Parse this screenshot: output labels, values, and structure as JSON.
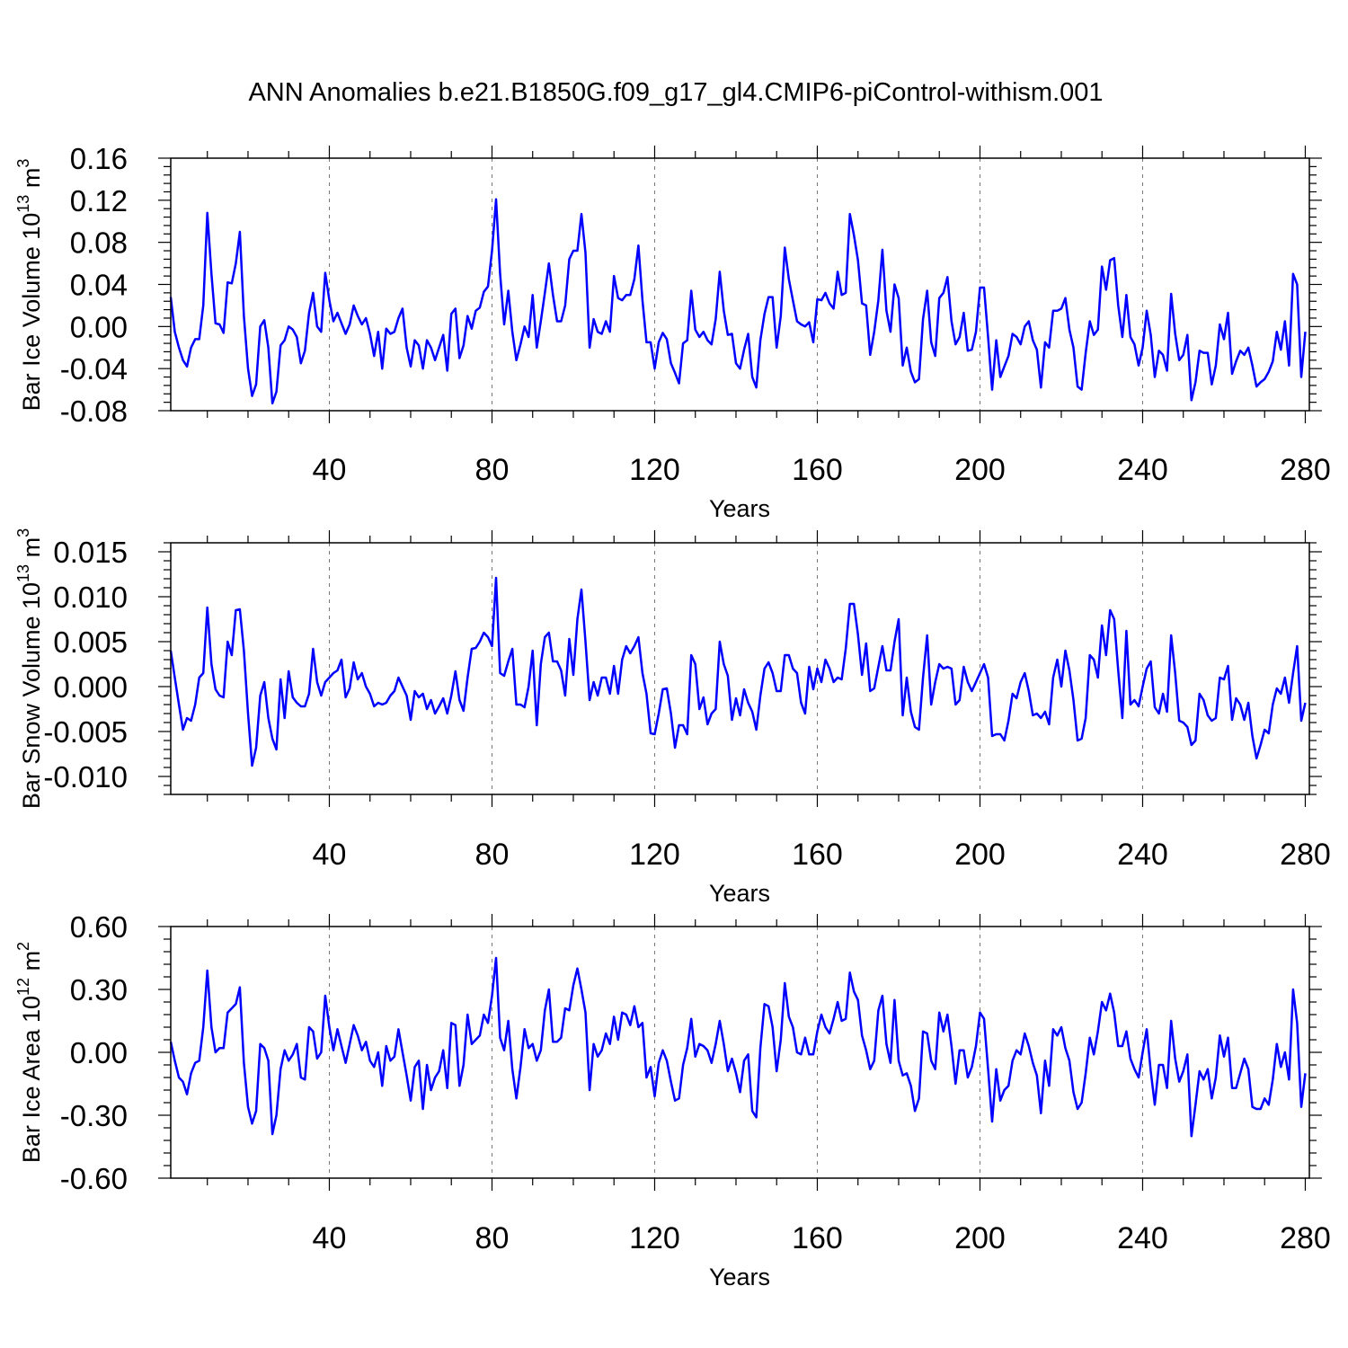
{
  "title": "ANN Anomalies b.e21.B1850G.f09_g17_gl4.CMIP6-piControl-withism.001",
  "chart_data": [
    {
      "type": "line",
      "title": "",
      "ylabel": "Bar Ice Volume 10",
      "ylabel_exp": "13",
      "ylabel_unit": " m",
      "ylabel_unit_exp": "3",
      "xlabel": "Years",
      "xlim": [
        1,
        281
      ],
      "ylim": [
        -0.08,
        0.16
      ],
      "yticks": [
        "-0.08",
        "-0.04",
        "0.00",
        "0.04",
        "0.08",
        "0.12",
        "0.16"
      ],
      "xticks": [
        "40",
        "80",
        "120",
        "160",
        "200",
        "240",
        "280"
      ],
      "grid": "vertical dashed at 40-year ticks",
      "line_color": "#0000ff",
      "x_start": 1,
      "values": [
        0.028,
        -0.005,
        -0.02,
        -0.032,
        -0.038,
        -0.02,
        -0.012,
        -0.012,
        0.02,
        0.108,
        0.05,
        0.003,
        0.002,
        -0.006,
        0.042,
        0.041,
        0.06,
        0.09,
        0.01,
        -0.04,
        -0.066,
        -0.055,
        0.0,
        0.006,
        -0.02,
        -0.073,
        -0.062,
        -0.018,
        -0.013,
        0.0,
        -0.003,
        -0.01,
        -0.035,
        -0.023,
        0.013,
        0.032,
        0.0,
        -0.005,
        0.051,
        0.025,
        0.005,
        0.013,
        0.003,
        -0.007,
        0.002,
        0.02,
        0.01,
        0.002,
        0.008,
        -0.007,
        -0.028,
        -0.005,
        -0.04,
        -0.002,
        -0.007,
        -0.005,
        0.008,
        0.017,
        -0.02,
        -0.038,
        -0.013,
        -0.018,
        -0.04,
        -0.013,
        -0.02,
        -0.032,
        -0.02,
        -0.008,
        -0.042,
        0.012,
        0.017,
        -0.03,
        -0.018,
        0.01,
        -0.002,
        0.015,
        0.018,
        0.033,
        0.038,
        0.072,
        0.121,
        0.05,
        0.002,
        0.034,
        -0.005,
        -0.032,
        -0.017,
        0.0,
        -0.01,
        0.03,
        -0.02,
        0.005,
        0.032,
        0.06,
        0.03,
        0.005,
        0.005,
        0.02,
        0.064,
        0.072,
        0.072,
        0.107,
        0.07,
        -0.02,
        0.007,
        -0.005,
        -0.007,
        0.005,
        -0.005,
        0.048,
        0.027,
        0.025,
        0.03,
        0.03,
        0.045,
        0.077,
        0.025,
        -0.015,
        -0.015,
        -0.04,
        -0.015,
        -0.006,
        -0.012,
        -0.035,
        -0.044,
        -0.054,
        -0.016,
        -0.013,
        0.034,
        -0.003,
        -0.01,
        -0.005,
        -0.013,
        -0.017,
        0.007,
        0.052,
        0.015,
        -0.008,
        -0.007,
        -0.035,
        -0.04,
        -0.022,
        -0.007,
        -0.048,
        -0.058,
        -0.013,
        0.012,
        0.028,
        0.028,
        -0.02,
        0.01,
        0.075,
        0.045,
        0.025,
        0.005,
        0.002,
        0.0,
        0.004,
        -0.015,
        0.026,
        0.025,
        0.032,
        0.022,
        0.017,
        0.052,
        0.03,
        0.032,
        0.107,
        0.087,
        0.063,
        0.022,
        0.02,
        -0.027,
        -0.005,
        0.025,
        0.073,
        0.015,
        -0.005,
        0.04,
        0.027,
        -0.037,
        -0.02,
        -0.043,
        -0.053,
        -0.05,
        0.007,
        0.034,
        -0.015,
        -0.028,
        0.027,
        0.032,
        0.047,
        0.005,
        -0.017,
        -0.01,
        0.013,
        -0.023,
        -0.022,
        -0.005,
        0.037,
        0.037,
        -0.01,
        -0.06,
        -0.013,
        -0.048,
        -0.038,
        -0.028,
        -0.007,
        -0.01,
        -0.017,
        0.0,
        0.005,
        -0.013,
        -0.022,
        -0.058,
        -0.015,
        -0.02,
        0.015,
        0.015,
        0.017,
        0.027,
        -0.003,
        -0.02,
        -0.057,
        -0.06,
        -0.025,
        0.005,
        -0.008,
        -0.003,
        0.057,
        0.035,
        0.063,
        0.065,
        0.02,
        -0.01,
        0.03,
        -0.01,
        -0.017,
        -0.037,
        -0.02,
        0.015,
        -0.008,
        -0.048,
        -0.023,
        -0.027,
        -0.042,
        0.031,
        -0.007,
        -0.032,
        -0.027,
        -0.008,
        -0.07,
        -0.053,
        -0.023,
        -0.025,
        -0.025,
        -0.055,
        -0.037,
        0.002,
        -0.012,
        0.013,
        -0.045,
        -0.033,
        -0.023,
        -0.027,
        -0.02,
        -0.037,
        -0.057,
        -0.053,
        -0.05,
        -0.043,
        -0.033,
        -0.005,
        -0.022,
        0.005,
        -0.037,
        0.05,
        0.04,
        -0.048,
        -0.005
      ]
    },
    {
      "type": "line",
      "title": "",
      "ylabel": "Bar Snow Volume 10",
      "ylabel_exp": "13",
      "ylabel_unit": " m",
      "ylabel_unit_exp": "3",
      "xlabel": "Years",
      "xlim": [
        1,
        281
      ],
      "ylim": [
        -0.012,
        0.016
      ],
      "yticks": [
        "-0.010",
        "-0.005",
        "0.000",
        "0.005",
        "0.010",
        "0.015"
      ],
      "ytick_values": [
        -0.01,
        -0.005,
        0.0,
        0.005,
        0.01,
        0.015
      ],
      "xticks": [
        "40",
        "80",
        "120",
        "160",
        "200",
        "240",
        "280"
      ],
      "grid": "vertical dashed at 40-year ticks",
      "line_color": "#0000ff",
      "x_start": 1,
      "values": [
        0.004,
        0.001,
        -0.002,
        -0.0048,
        -0.0035,
        -0.0038,
        -0.002,
        0.001,
        0.0015,
        0.0088,
        0.0025,
        -0.0003,
        -0.001,
        -0.0012,
        0.005,
        0.0035,
        0.0085,
        0.0086,
        0.004,
        -0.003,
        -0.0088,
        -0.0068,
        -0.001,
        0.0005,
        -0.0035,
        -0.0058,
        -0.007,
        0.0008,
        -0.0035,
        0.0017,
        -0.0012,
        -0.0018,
        -0.0022,
        -0.0022,
        -0.0008,
        0.0042,
        0.0005,
        -0.001,
        0.0005,
        0.001,
        0.0015,
        0.0018,
        0.003,
        -0.0012,
        -0.0002,
        0.0027,
        0.0008,
        0.0015,
        0.0,
        -0.0008,
        -0.0022,
        -0.0018,
        -0.002,
        -0.0018,
        -0.001,
        -0.0005,
        0.001,
        0.0,
        -0.001,
        -0.0037,
        -0.0005,
        -0.0012,
        -0.0008,
        -0.0025,
        -0.0015,
        -0.003,
        -0.0022,
        -0.0013,
        -0.003,
        -0.001,
        0.0017,
        -0.0015,
        -0.0027,
        0.001,
        0.0042,
        0.0043,
        0.005,
        0.006,
        0.0055,
        0.0045,
        0.0121,
        0.0015,
        0.0012,
        0.0028,
        0.0042,
        -0.002,
        -0.002,
        -0.0023,
        0.0,
        0.004,
        -0.0043,
        0.0025,
        0.0055,
        0.006,
        0.0028,
        0.0028,
        0.0018,
        -0.001,
        0.0053,
        0.0013,
        0.0075,
        0.0108,
        0.005,
        -0.0015,
        0.0005,
        -0.001,
        0.001,
        0.001,
        -0.0008,
        0.0023,
        -0.0008,
        0.003,
        0.0045,
        0.0037,
        0.0045,
        0.0055,
        0.0015,
        -0.0008,
        -0.0052,
        -0.0053,
        -0.003,
        -0.0003,
        -0.0002,
        -0.003,
        -0.0068,
        -0.0043,
        -0.0043,
        -0.0053,
        0.0035,
        0.0025,
        -0.0025,
        -0.0012,
        -0.0042,
        -0.003,
        -0.0025,
        0.005,
        0.0025,
        0.0012,
        -0.0037,
        -0.0013,
        -0.0032,
        -0.0003,
        -0.0018,
        -0.0028,
        -0.0048,
        -0.001,
        0.002,
        0.0027,
        0.0015,
        -0.0005,
        -0.0005,
        0.0035,
        0.0035,
        0.002,
        0.0015,
        -0.0018,
        -0.003,
        0.0022,
        -0.0003,
        0.002,
        0.0005,
        0.003,
        0.002,
        0.0005,
        0.001,
        0.0008,
        0.0042,
        0.0092,
        0.0092,
        0.0058,
        0.0013,
        0.0048,
        -0.0005,
        -0.0002,
        0.0022,
        0.0045,
        0.0018,
        0.0018,
        0.005,
        0.0075,
        -0.0032,
        0.001,
        -0.0028,
        -0.0045,
        -0.0048,
        0.001,
        0.0057,
        -0.002,
        0.0005,
        0.0025,
        0.002,
        0.0022,
        0.002,
        -0.002,
        -0.0015,
        0.0022,
        0.0005,
        -0.0005,
        0.0005,
        0.0015,
        0.0025,
        0.001,
        -0.0055,
        -0.0053,
        -0.0053,
        -0.006,
        -0.0038,
        -0.0008,
        -0.0013,
        0.0005,
        0.0015,
        -0.0005,
        -0.0032,
        -0.003,
        -0.0035,
        -0.0028,
        -0.0042,
        0.001,
        0.003,
        0.0,
        0.004,
        0.0018,
        -0.0015,
        -0.006,
        -0.0058,
        -0.0035,
        0.0035,
        0.003,
        0.001,
        0.0068,
        0.0035,
        0.0085,
        0.0075,
        0.0018,
        -0.0035,
        0.0062,
        -0.002,
        -0.0015,
        -0.0022,
        0.0,
        0.002,
        0.0028,
        -0.0023,
        -0.003,
        -0.0008,
        -0.0028,
        0.0057,
        0.0015,
        -0.0038,
        -0.004,
        -0.0045,
        -0.0065,
        -0.006,
        -0.0008,
        -0.0015,
        -0.0032,
        -0.0038,
        -0.0035,
        0.001,
        0.0008,
        0.0023,
        -0.0037,
        -0.0013,
        -0.002,
        -0.0037,
        -0.0018,
        -0.0055,
        -0.008,
        -0.0065,
        -0.0048,
        -0.0052,
        -0.002,
        -0.0002,
        -0.0008,
        0.001,
        -0.0018,
        0.0015,
        0.0045,
        -0.0038,
        -0.0018
      ]
    },
    {
      "type": "line",
      "title": "",
      "ylabel": "Bar Ice Area 10",
      "ylabel_exp": "12",
      "ylabel_unit": " m",
      "ylabel_unit_exp": "2",
      "xlabel": "Years",
      "xlim": [
        1,
        281
      ],
      "ylim": [
        -0.6,
        0.6
      ],
      "yticks": [
        "-0.60",
        "-0.30",
        "0.00",
        "0.30",
        "0.60"
      ],
      "ytick_values": [
        -0.6,
        -0.3,
        0.0,
        0.3,
        0.6
      ],
      "xticks": [
        "40",
        "80",
        "120",
        "160",
        "200",
        "240",
        "280"
      ],
      "grid": "vertical dashed at 40-year ticks",
      "line_color": "#0000ff",
      "x_start": 1,
      "values": [
        0.05,
        -0.04,
        -0.12,
        -0.14,
        -0.2,
        -0.1,
        -0.05,
        -0.04,
        0.12,
        0.39,
        0.12,
        0.0,
        0.02,
        0.02,
        0.19,
        0.21,
        0.23,
        0.31,
        -0.05,
        -0.26,
        -0.34,
        -0.28,
        0.04,
        0.02,
        -0.04,
        -0.39,
        -0.3,
        -0.08,
        0.01,
        -0.04,
        -0.01,
        0.04,
        -0.12,
        -0.13,
        0.12,
        0.1,
        -0.03,
        0.0,
        0.27,
        0.12,
        0.01,
        0.11,
        0.03,
        -0.05,
        0.04,
        0.13,
        0.08,
        0.01,
        0.05,
        -0.04,
        -0.07,
        0.0,
        -0.16,
        0.03,
        -0.04,
        -0.02,
        0.11,
        0.0,
        -0.11,
        -0.23,
        -0.07,
        -0.04,
        -0.27,
        -0.06,
        -0.18,
        -0.12,
        -0.09,
        0.01,
        -0.17,
        0.14,
        0.13,
        -0.16,
        -0.06,
        0.18,
        0.04,
        0.06,
        0.08,
        0.18,
        0.14,
        0.27,
        0.45,
        0.07,
        0.01,
        0.15,
        -0.08,
        -0.22,
        -0.07,
        0.11,
        0.02,
        0.04,
        -0.04,
        0.01,
        0.2,
        0.3,
        0.05,
        0.05,
        0.07,
        0.21,
        0.2,
        0.32,
        0.4,
        0.3,
        0.19,
        -0.18,
        0.04,
        -0.02,
        0.01,
        0.09,
        0.04,
        0.17,
        0.06,
        0.19,
        0.18,
        0.13,
        0.22,
        0.12,
        0.14,
        -0.12,
        -0.07,
        -0.21,
        -0.05,
        0.01,
        -0.04,
        -0.14,
        -0.23,
        -0.22,
        -0.06,
        0.02,
        0.16,
        -0.02,
        0.04,
        0.03,
        0.01,
        -0.05,
        0.04,
        0.15,
        0.04,
        -0.09,
        -0.03,
        -0.1,
        -0.19,
        -0.04,
        -0.01,
        -0.28,
        -0.31,
        0.02,
        0.23,
        0.22,
        0.12,
        -0.09,
        0.06,
        0.33,
        0.17,
        0.12,
        0.0,
        -0.01,
        0.07,
        -0.01,
        -0.01,
        0.1,
        0.18,
        0.12,
        0.09,
        0.16,
        0.24,
        0.15,
        0.16,
        0.38,
        0.29,
        0.25,
        0.08,
        0.01,
        -0.08,
        -0.04,
        0.2,
        0.27,
        0.04,
        -0.05,
        0.25,
        -0.04,
        -0.11,
        -0.1,
        -0.16,
        -0.28,
        -0.22,
        0.1,
        0.09,
        -0.04,
        -0.08,
        0.19,
        0.1,
        0.18,
        0.03,
        -0.15,
        0.01,
        0.01,
        -0.12,
        -0.07,
        0.03,
        0.19,
        0.16,
        -0.08,
        -0.33,
        -0.08,
        -0.23,
        -0.18,
        -0.16,
        -0.04,
        0.01,
        -0.01,
        0.09,
        0.03,
        -0.05,
        -0.11,
        -0.29,
        -0.04,
        -0.16,
        0.11,
        0.08,
        0.12,
        0.02,
        -0.04,
        -0.19,
        -0.27,
        -0.24,
        -0.1,
        0.07,
        -0.01,
        0.1,
        0.24,
        0.2,
        0.28,
        0.19,
        0.03,
        0.03,
        0.1,
        -0.03,
        -0.08,
        -0.12,
        0.0,
        0.11,
        -0.09,
        -0.25,
        -0.06,
        -0.06,
        -0.17,
        0.15,
        -0.03,
        -0.14,
        -0.09,
        -0.01,
        -0.4,
        -0.25,
        -0.09,
        -0.13,
        -0.08,
        -0.22,
        -0.12,
        0.08,
        -0.02,
        0.07,
        -0.17,
        -0.17,
        -0.1,
        -0.03,
        -0.08,
        -0.26,
        -0.27,
        -0.27,
        -0.22,
        -0.25,
        -0.13,
        0.04,
        -0.07,
        0.0,
        -0.13,
        0.3,
        0.14,
        -0.26,
        -0.1
      ]
    }
  ]
}
